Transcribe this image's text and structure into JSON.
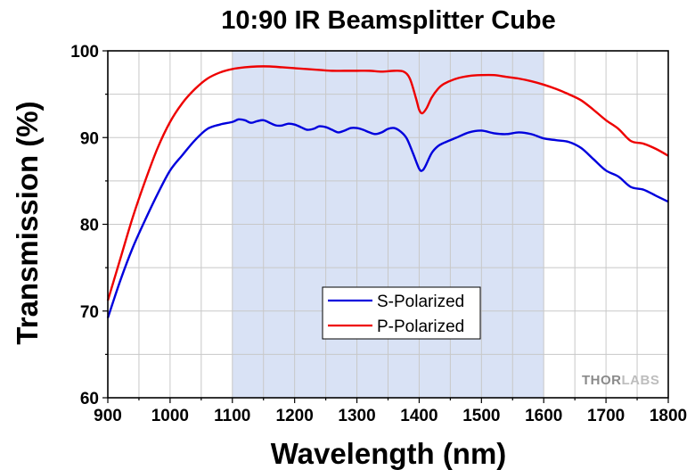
{
  "chart_data": {
    "type": "line",
    "title": "10:90 IR Beamsplitter Cube",
    "xlabel": "Wavelength (nm)",
    "ylabel": "Transmission (%)",
    "xlim": [
      900,
      1800
    ],
    "ylim": [
      60,
      100
    ],
    "xticks": [
      "900",
      "1000",
      "1100",
      "1200",
      "1300",
      "1400",
      "1500",
      "1600",
      "1700",
      "1800"
    ],
    "yticks": [
      "60",
      "70",
      "80",
      "90",
      "100"
    ],
    "grid": true,
    "highlight_band": {
      "x_start": 1100,
      "x_end": 1600,
      "color": "#d9e2f5"
    },
    "legend": {
      "position": "center-bottom"
    },
    "watermark": {
      "thor": "THOR",
      "labs": "LABS"
    },
    "series": [
      {
        "name": "S-Polarized",
        "color": "#0000dd",
        "points": [
          [
            900,
            69.2
          ],
          [
            920,
            73.5
          ],
          [
            940,
            77.3
          ],
          [
            960,
            80.5
          ],
          [
            980,
            83.5
          ],
          [
            1000,
            86.2
          ],
          [
            1020,
            88.0
          ],
          [
            1040,
            89.7
          ],
          [
            1060,
            91.0
          ],
          [
            1080,
            91.5
          ],
          [
            1100,
            91.8
          ],
          [
            1110,
            92.1
          ],
          [
            1120,
            92.0
          ],
          [
            1130,
            91.7
          ],
          [
            1140,
            91.9
          ],
          [
            1150,
            92.0
          ],
          [
            1160,
            91.7
          ],
          [
            1170,
            91.4
          ],
          [
            1180,
            91.4
          ],
          [
            1190,
            91.6
          ],
          [
            1200,
            91.5
          ],
          [
            1210,
            91.2
          ],
          [
            1220,
            90.9
          ],
          [
            1230,
            91.0
          ],
          [
            1240,
            91.3
          ],
          [
            1250,
            91.2
          ],
          [
            1260,
            90.9
          ],
          [
            1270,
            90.6
          ],
          [
            1280,
            90.8
          ],
          [
            1290,
            91.1
          ],
          [
            1300,
            91.1
          ],
          [
            1310,
            90.9
          ],
          [
            1320,
            90.6
          ],
          [
            1330,
            90.4
          ],
          [
            1340,
            90.6
          ],
          [
            1350,
            91.0
          ],
          [
            1360,
            91.1
          ],
          [
            1370,
            90.7
          ],
          [
            1380,
            89.9
          ],
          [
            1390,
            88.2
          ],
          [
            1400,
            86.4
          ],
          [
            1405,
            86.2
          ],
          [
            1410,
            86.7
          ],
          [
            1420,
            88.2
          ],
          [
            1430,
            89.0
          ],
          [
            1440,
            89.4
          ],
          [
            1460,
            90.0
          ],
          [
            1480,
            90.6
          ],
          [
            1500,
            90.8
          ],
          [
            1520,
            90.5
          ],
          [
            1540,
            90.4
          ],
          [
            1560,
            90.6
          ],
          [
            1580,
            90.4
          ],
          [
            1600,
            89.9
          ],
          [
            1620,
            89.7
          ],
          [
            1640,
            89.5
          ],
          [
            1660,
            88.8
          ],
          [
            1680,
            87.5
          ],
          [
            1700,
            86.2
          ],
          [
            1720,
            85.5
          ],
          [
            1740,
            84.3
          ],
          [
            1760,
            84.0
          ],
          [
            1780,
            83.3
          ],
          [
            1800,
            82.6
          ]
        ]
      },
      {
        "name": "P-Polarized",
        "color": "#ee0000",
        "points": [
          [
            900,
            71.2
          ],
          [
            920,
            76.0
          ],
          [
            940,
            80.8
          ],
          [
            960,
            85.0
          ],
          [
            980,
            88.8
          ],
          [
            1000,
            91.8
          ],
          [
            1020,
            94.0
          ],
          [
            1040,
            95.6
          ],
          [
            1060,
            96.8
          ],
          [
            1080,
            97.5
          ],
          [
            1100,
            97.9
          ],
          [
            1120,
            98.1
          ],
          [
            1140,
            98.2
          ],
          [
            1160,
            98.2
          ],
          [
            1180,
            98.1
          ],
          [
            1200,
            98.0
          ],
          [
            1220,
            97.9
          ],
          [
            1240,
            97.8
          ],
          [
            1260,
            97.7
          ],
          [
            1280,
            97.7
          ],
          [
            1300,
            97.7
          ],
          [
            1320,
            97.7
          ],
          [
            1340,
            97.6
          ],
          [
            1360,
            97.7
          ],
          [
            1375,
            97.6
          ],
          [
            1385,
            96.8
          ],
          [
            1395,
            94.5
          ],
          [
            1400,
            93.2
          ],
          [
            1405,
            92.8
          ],
          [
            1412,
            93.4
          ],
          [
            1420,
            94.6
          ],
          [
            1430,
            95.6
          ],
          [
            1440,
            96.2
          ],
          [
            1460,
            96.8
          ],
          [
            1480,
            97.1
          ],
          [
            1500,
            97.2
          ],
          [
            1520,
            97.2
          ],
          [
            1540,
            97.0
          ],
          [
            1560,
            96.8
          ],
          [
            1580,
            96.5
          ],
          [
            1600,
            96.1
          ],
          [
            1620,
            95.6
          ],
          [
            1640,
            95.0
          ],
          [
            1660,
            94.3
          ],
          [
            1680,
            93.2
          ],
          [
            1700,
            92.0
          ],
          [
            1720,
            91.0
          ],
          [
            1740,
            89.6
          ],
          [
            1760,
            89.3
          ],
          [
            1780,
            88.7
          ],
          [
            1800,
            87.9
          ]
        ]
      }
    ]
  }
}
